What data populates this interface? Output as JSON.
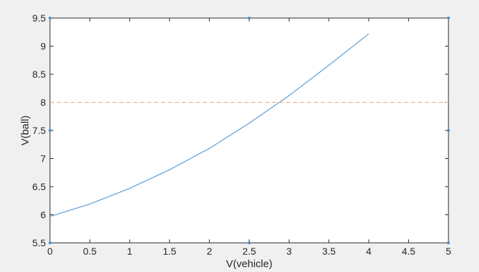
{
  "chart_data": {
    "type": "line",
    "title": "",
    "xlabel": "V(vehicle)",
    "ylabel": "V(ball)",
    "xlim": [
      0,
      5
    ],
    "ylim": [
      5.5,
      9.5
    ],
    "xticks": [
      0,
      0.5,
      1,
      1.5,
      2,
      2.5,
      3,
      3.5,
      4,
      4.5,
      5
    ],
    "xtick_labels": [
      "0",
      "0.5",
      "1",
      "1.5",
      "2",
      "2.5",
      "3",
      "3.5",
      "4",
      "4.5",
      "5"
    ],
    "yticks": [
      5.5,
      6,
      6.5,
      7,
      7.5,
      8,
      8.5,
      9,
      9.5
    ],
    "ytick_labels": [
      "5.5",
      "6",
      "6.5",
      "7",
      "7.5",
      "8",
      "8.5",
      "9",
      "9.5"
    ],
    "grid": false,
    "series": [
      {
        "style": "solid",
        "color": "#5b9bd5",
        "x": [
          0,
          0.5,
          1,
          1.5,
          2,
          2.5,
          3,
          3.5,
          4
        ],
        "y": [
          5.97,
          6.19,
          6.47,
          6.8,
          7.18,
          7.63,
          8.12,
          8.66,
          9.22
        ]
      },
      {
        "style": "dashed",
        "color": "#f4b183",
        "x": [
          0,
          5
        ],
        "y": [
          8,
          8
        ]
      }
    ],
    "markers": {
      "color": "#4a8ccf",
      "points": [
        {
          "x": 0,
          "y": 9.5
        },
        {
          "x": 2.5,
          "y": 9.5
        },
        {
          "x": 5,
          "y": 9.5
        },
        {
          "x": 0,
          "y": 7.5
        },
        {
          "x": 5,
          "y": 7.5
        },
        {
          "x": 0,
          "y": 5.5
        },
        {
          "x": 2.5,
          "y": 5.5
        },
        {
          "x": 5,
          "y": 5.5
        }
      ]
    },
    "colors": {
      "background": "#f0f0f0",
      "plot_area": "#ffffff",
      "axes": "#262626"
    }
  }
}
